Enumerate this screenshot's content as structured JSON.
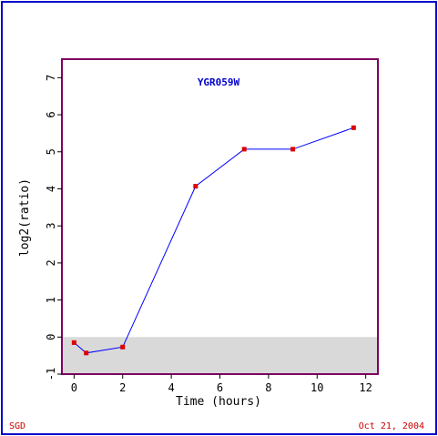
{
  "chart_data": {
    "type": "line",
    "title": "YGR059W",
    "xlabel": "Time (hours)",
    "ylabel": "log2(ratio)",
    "xlim": [
      -0.5,
      12.5
    ],
    "ylim": [
      -1,
      7.5
    ],
    "x_ticks": [
      0,
      2,
      4,
      6,
      8,
      10,
      12
    ],
    "y_ticks": [
      -1,
      0,
      1,
      2,
      3,
      4,
      5,
      6,
      7
    ],
    "x_tick_labels": [
      "0",
      "2",
      "4",
      "6",
      "8",
      "10",
      "12"
    ],
    "y_tick_labels": [
      "-1",
      "0",
      "1",
      "2",
      "3",
      "4",
      "5",
      "6",
      "7"
    ],
    "grid": false,
    "below_zero_shading": true,
    "series": [
      {
        "x": [
          0,
          0.5,
          2,
          5,
          7,
          9,
          11.5
        ],
        "y": [
          -0.15,
          -0.43,
          -0.27,
          4.07,
          5.07,
          5.07,
          5.65
        ]
      }
    ],
    "colors": {
      "frame": "#0000cc",
      "axes_box": "#800060",
      "line": "#0000ff",
      "marker": "#dd0000",
      "shading": "#d9d9d9",
      "title": "#0000cc",
      "footer": "#cc0000"
    }
  },
  "footer": {
    "left": "SGD",
    "right": "Oct 21, 2004"
  }
}
